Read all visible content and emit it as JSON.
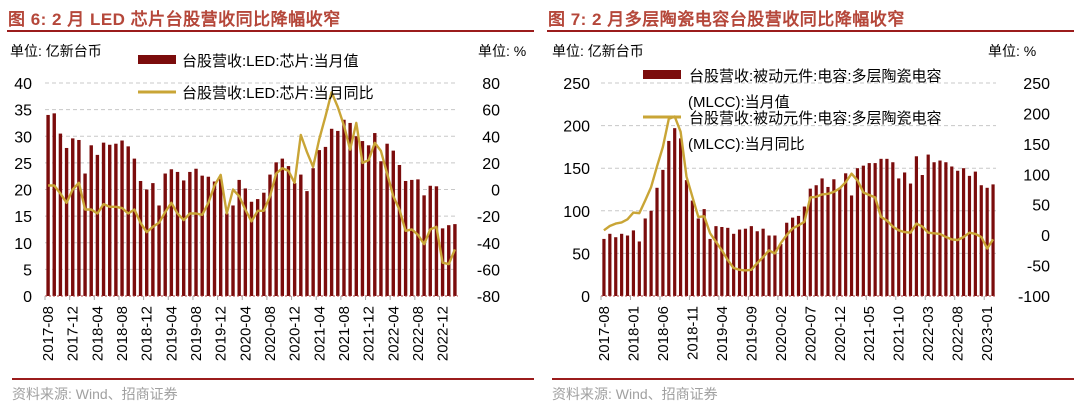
{
  "colors": {
    "title": "#b5473a",
    "rule": "#9b1c1c",
    "bar": "#7b0c0c",
    "line": "#c9a536",
    "grid": "#c8c8c8",
    "source": "#a0a0a0"
  },
  "chart_data": [
    {
      "type": "bar+line",
      "title": "图 6:  2 月 LED 芯片台股营收同比降幅收窄",
      "left_unit": "单位:  亿新台币",
      "right_unit": "单位:  %",
      "source": "资料来源:  Wind、招商证券",
      "x_start": "2017-08",
      "x_tick_labels": [
        "2017-08",
        "2017-12",
        "2018-04",
        "2018-08",
        "2018-12",
        "2019-04",
        "2019-08",
        "2019-12",
        "2020-04",
        "2020-08",
        "2020-12",
        "2021-04",
        "2021-08",
        "2021-12",
        "2022-04",
        "2022-08",
        "2022-12"
      ],
      "x_tick_every": 4,
      "ylim_left": [
        0,
        40
      ],
      "yticks_left": [
        0,
        5,
        10,
        15,
        20,
        25,
        30,
        35,
        40
      ],
      "ylim_right": [
        -80,
        80
      ],
      "yticks_right": [
        -80,
        -60,
        -40,
        -20,
        0,
        20,
        40,
        60,
        80
      ],
      "grid": true,
      "legend_placement": "top",
      "series": [
        {
          "name": "台股营收:LED:芯片:当月值",
          "type": "bar",
          "axis": "left",
          "values": [
            34.0,
            34.3,
            30.5,
            27.8,
            29.6,
            29.3,
            23.0,
            28.3,
            26.5,
            28.8,
            28.4,
            28.6,
            29.2,
            28.1,
            25.8,
            21.6,
            20.0,
            21.2,
            17.0,
            23.0,
            23.8,
            23.3,
            21.7,
            23.3,
            23.9,
            22.6,
            22.4,
            21.5,
            22.0,
            15.5,
            17.0,
            21.8,
            20.2,
            17.7,
            18.2,
            19.4,
            22.8,
            25.1,
            25.8,
            24.4,
            21.2,
            22.8,
            19.7,
            24.0,
            27.4,
            28.0,
            31.4,
            31.0,
            33.1,
            32.5,
            30.0,
            29.1,
            28.3,
            30.6,
            25.3,
            28.6,
            27.3,
            24.6,
            21.6,
            21.8,
            21.9,
            18.9,
            20.7,
            20.6,
            12.7,
            13.3,
            13.5
          ]
        },
        {
          "name": "台股营收:LED:芯片:当月同比",
          "type": "line",
          "axis": "right",
          "values": [
            3,
            3,
            -3,
            -10,
            0,
            5,
            -15,
            -15,
            -18,
            -11,
            -13,
            -13,
            -14,
            -18,
            -15,
            -25,
            -32,
            -28,
            -25,
            -17,
            -10,
            -18,
            -23,
            -18,
            -18,
            -19,
            -10,
            3,
            11,
            -18,
            0,
            -5,
            -15,
            -24,
            -16,
            -16,
            -5,
            12,
            16,
            14,
            5,
            41,
            28,
            17,
            38,
            55,
            73,
            62,
            48,
            30,
            50,
            20,
            22,
            35,
            29,
            12,
            -5,
            -15,
            -31,
            -30,
            -34,
            -41,
            -30,
            -28,
            -55,
            -56,
            -45
          ]
        }
      ]
    },
    {
      "type": "bar+line",
      "title": "图 7:  2 月多层陶瓷电容台股营收同比降幅收窄",
      "left_unit": "单位:  亿新台币",
      "right_unit": "单位:  %",
      "source": "资料来源:  Wind、招商证券",
      "x_start": "2017-08",
      "x_tick_labels": [
        "2017-08",
        "2018-01",
        "2018-06",
        "2018-11",
        "2019-04",
        "2019-09",
        "2020-02",
        "2020-07",
        "2020-12",
        "2021-05",
        "2021-10",
        "2022-03",
        "2022-08",
        "2023-01"
      ],
      "x_tick_every": 5,
      "ylim_left": [
        0,
        250
      ],
      "yticks_left": [
        0,
        50,
        100,
        150,
        200,
        250
      ],
      "ylim_right": [
        -100,
        250
      ],
      "yticks_right": [
        -100,
        -50,
        0,
        50,
        100,
        150,
        200,
        250
      ],
      "grid": true,
      "legend_placement": "top",
      "legend_lines": [
        [
          "台股营收:被动元件:电容:多层陶瓷电容",
          "(MLCC):当月值"
        ],
        [
          "台股营收:被动元件:电容:多层陶瓷电容",
          "(MLCC):当月同比"
        ]
      ],
      "series": [
        {
          "name": "台股营收:被动元件:电容:多层陶瓷电容(MLCC):当月值",
          "type": "bar",
          "axis": "left",
          "values": [
            67,
            73,
            69,
            73,
            71,
            77,
            64,
            91,
            100,
            127,
            148,
            182,
            197,
            185,
            136,
            112,
            91,
            102,
            67,
            82,
            81,
            80,
            73,
            78,
            79,
            82,
            76,
            79,
            71,
            71,
            61,
            86,
            92,
            94,
            105,
            126,
            130,
            138,
            128,
            137,
            127,
            144,
            118,
            150,
            153,
            156,
            156,
            161,
            161,
            157,
            138,
            145,
            132,
            164,
            142,
            166,
            157,
            159,
            157,
            152,
            147,
            150,
            141,
            146,
            130,
            127,
            131
          ]
        },
        {
          "name": "台股营收:被动元件:电容:多层陶瓷电容(MLCC):当月同比",
          "type": "line",
          "axis": "right",
          "values": [
            8,
            15,
            19,
            21,
            26,
            37,
            36,
            57,
            79,
            113,
            145,
            191,
            195,
            170,
            96,
            63,
            30,
            31,
            3,
            -11,
            -25,
            -41,
            -54,
            -57,
            -58,
            -57,
            -46,
            -36,
            -25,
            -30,
            -13,
            0,
            11,
            16,
            22,
            62,
            63,
            67,
            68,
            71,
            77,
            87,
            101,
            90,
            70,
            66,
            62,
            30,
            24,
            14,
            8,
            5,
            4,
            19,
            14,
            4,
            3,
            2,
            -3,
            -7,
            -8,
            -3,
            4,
            2,
            -3,
            -22,
            -7
          ]
        }
      ]
    }
  ]
}
